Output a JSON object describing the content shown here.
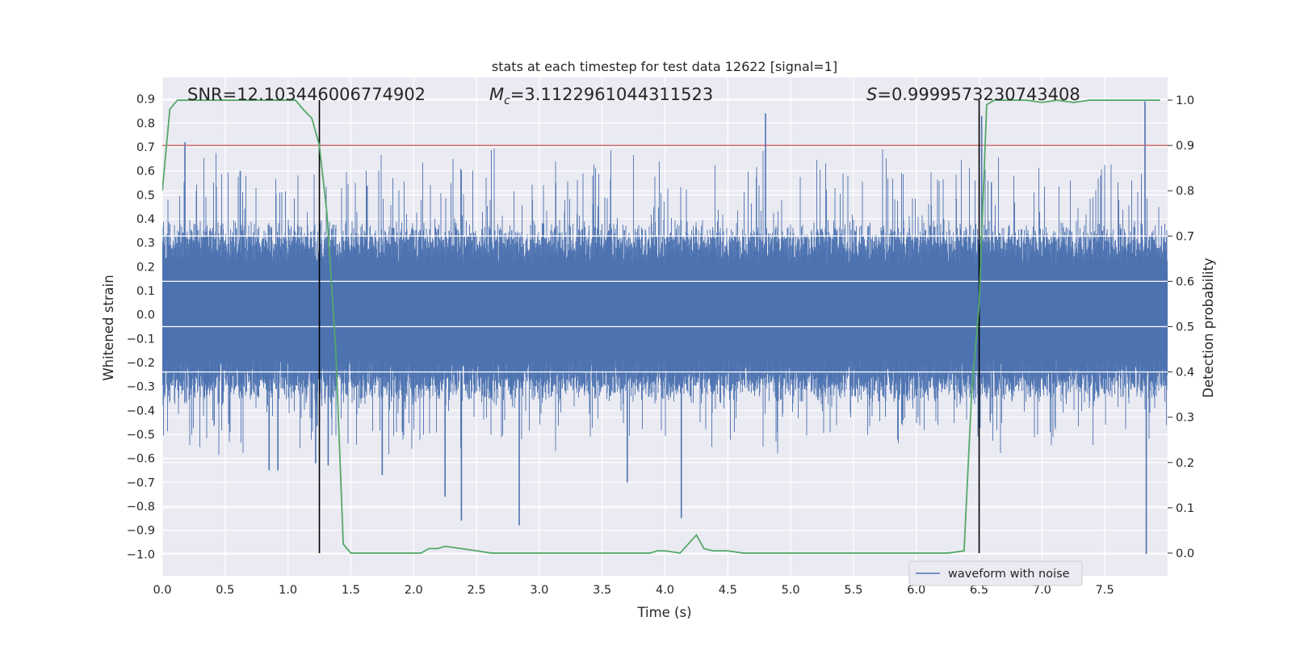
{
  "chart_data": {
    "type": "line",
    "title": "stats at each timestep for test data 12622 [signal=1]",
    "xlabel": "Time (s)",
    "ylabel_left": "Whitened strain",
    "ylabel_right": "Detection probability",
    "xlim": [
      0.0,
      8.0
    ],
    "ylim_left": [
      -1.09,
      0.99
    ],
    "ylim_right": [
      -0.05,
      1.05
    ],
    "x_ticks": [
      0.0,
      0.5,
      1.0,
      1.5,
      2.0,
      2.5,
      3.0,
      3.5,
      4.0,
      4.5,
      5.0,
      5.5,
      6.0,
      6.5,
      7.0,
      7.5
    ],
    "x_tick_labels": [
      "0.0",
      "0.5",
      "1.0",
      "1.5",
      "2.0",
      "2.5",
      "3.0",
      "3.5",
      "4.0",
      "4.5",
      "5.0",
      "5.5",
      "6.0",
      "6.5",
      "7.0",
      "7.5"
    ],
    "y_ticks_left": [
      0.9,
      0.8,
      0.7,
      0.6,
      0.5,
      0.4,
      0.3,
      0.2,
      0.1,
      0.0,
      -0.1,
      -0.2,
      -0.3,
      -0.4,
      -0.5,
      -0.6,
      -0.7,
      -0.8,
      -0.9,
      -1.0
    ],
    "y_tick_labels_left": [
      "0.9",
      "0.8",
      "0.7",
      "0.6",
      "0.5",
      "0.4",
      "0.3",
      "0.2",
      "0.1",
      "0.0",
      "−0.1",
      "−0.2",
      "−0.3",
      "−0.4",
      "−0.5",
      "−0.6",
      "−0.7",
      "−0.8",
      "−0.9",
      "−1.0"
    ],
    "y_ticks_right": [
      1.0,
      0.9,
      0.8,
      0.7,
      0.6,
      0.5,
      0.4,
      0.3,
      0.2,
      0.1,
      0.0
    ],
    "y_tick_labels_right": [
      "1.0",
      "0.9",
      "0.8",
      "0.7",
      "0.6",
      "0.5",
      "0.4",
      "0.3",
      "0.2",
      "0.1",
      "0.0"
    ],
    "annotations": {
      "snr": "SNR=12.103446006774902",
      "mc_symbol": "M",
      "mc_sub": "c",
      "mc_value": "=3.1122961044311523",
      "s_symbol": "S",
      "s_value": "=0.9999573230743408"
    },
    "threshold": {
      "value": 0.9,
      "axis": "right",
      "color": "#c44e52"
    },
    "boundaries": {
      "times": [
        1.25,
        6.5
      ],
      "color": "#000000"
    },
    "legend": {
      "label": "waveform with noise",
      "placement": "lower-right"
    },
    "series": [
      {
        "name": "waveform with noise",
        "axis": "left",
        "color": "#4c72b0",
        "description": "whitened strain noise, 4096 samples/s over 8 s",
        "duration": 8.0,
        "typical_range": [
          -0.45,
          0.45
        ],
        "peaks": [
          {
            "t": 0.18,
            "v": 0.72
          },
          {
            "t": 0.62,
            "v": 0.6
          },
          {
            "t": 0.85,
            "v": -0.65
          },
          {
            "t": 0.92,
            "v": -0.65
          },
          {
            "t": 1.22,
            "v": -0.62
          },
          {
            "t": 1.32,
            "v": -0.63
          },
          {
            "t": 1.75,
            "v": -0.67
          },
          {
            "t": 2.25,
            "v": -0.76
          },
          {
            "t": 2.38,
            "v": -0.86
          },
          {
            "t": 2.84,
            "v": -0.88
          },
          {
            "t": 3.7,
            "v": -0.7
          },
          {
            "t": 4.13,
            "v": -0.85
          },
          {
            "t": 4.8,
            "v": 0.84
          },
          {
            "t": 6.52,
            "v": 0.83
          },
          {
            "t": 7.82,
            "v": 0.89
          },
          {
            "t": 7.83,
            "v": -1.0
          }
        ]
      },
      {
        "name": "Detection probability",
        "axis": "right",
        "color": "#55a868",
        "x": [
          0.0,
          0.06,
          0.12,
          0.19,
          0.25,
          0.31,
          0.38,
          0.44,
          0.5,
          0.56,
          0.62,
          0.69,
          0.75,
          0.81,
          0.88,
          0.94,
          1.0,
          1.06,
          1.12,
          1.19,
          1.25,
          1.31,
          1.38,
          1.44,
          1.5,
          1.62,
          1.75,
          1.88,
          2.0,
          2.06,
          2.12,
          2.19,
          2.25,
          2.38,
          2.5,
          2.62,
          2.75,
          2.88,
          3.0,
          3.12,
          3.25,
          3.5,
          3.75,
          3.88,
          3.94,
          4.0,
          4.12,
          4.25,
          4.31,
          4.38,
          4.5,
          4.62,
          5.0,
          5.5,
          6.0,
          6.25,
          6.38,
          6.44,
          6.5,
          6.56,
          6.62,
          6.75,
          6.88,
          7.0,
          7.12,
          7.25,
          7.38,
          7.5,
          7.62,
          7.75,
          7.94
        ],
        "values": [
          0.8,
          0.98,
          1.0,
          1.0,
          1.0,
          1.0,
          1.0,
          1.0,
          1.0,
          1.0,
          1.0,
          1.0,
          1.0,
          1.0,
          1.0,
          1.0,
          1.0,
          1.0,
          0.98,
          0.96,
          0.9,
          0.75,
          0.45,
          0.02,
          0.0,
          0.0,
          0.0,
          0.0,
          0.0,
          0.0,
          0.01,
          0.01,
          0.015,
          0.01,
          0.005,
          0.0,
          0.0,
          0.0,
          0.0,
          0.0,
          0.0,
          0.0,
          0.0,
          0.0,
          0.005,
          0.005,
          0.0,
          0.04,
          0.01,
          0.005,
          0.005,
          0.0,
          0.0,
          0.0,
          0.0,
          0.0,
          0.005,
          0.35,
          0.55,
          0.99,
          1.0,
          1.0,
          1.0,
          0.995,
          1.0,
          0.995,
          1.0,
          1.0,
          1.0,
          1.0,
          1.0
        ]
      }
    ]
  }
}
